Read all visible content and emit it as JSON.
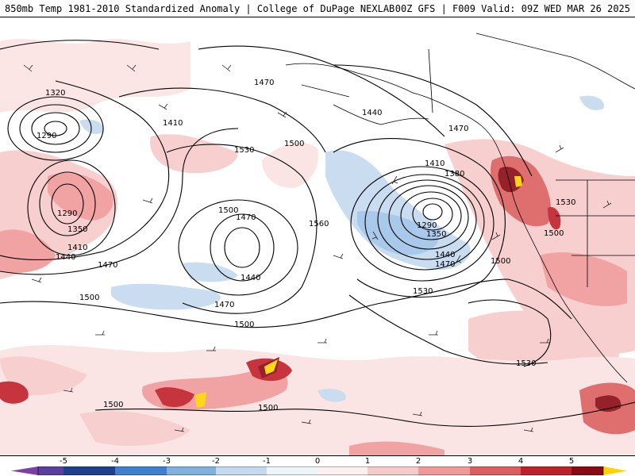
{
  "header": {
    "title_left": "850mb Temp 1981-2010 Standardized Anomaly | College of DuPage NEXLAB",
    "title_right": "00Z GFS | F009 Valid: 09Z WED MAR 26 2025"
  },
  "map": {
    "variable": "850mb temperature standardized anomaly (shaded) and 850mb geopotential height contours (dam) with wind barbs",
    "low_centers": [
      {
        "region": "far northwest",
        "labels": [
          "1320",
          "1290"
        ]
      },
      {
        "region": "west, south of first low",
        "labels": [
          "1290",
          "1350",
          "1410",
          "1440"
        ]
      },
      {
        "region": "central Pacific",
        "labels": [
          "1500",
          "1470",
          "1440"
        ]
      },
      {
        "region": "Gulf of Alaska",
        "labels": [
          "1410",
          "1380",
          "1290",
          "1350",
          "1440",
          "1470"
        ]
      }
    ],
    "contour_labels": [
      {
        "id": "c1320",
        "text": "1320"
      },
      {
        "id": "c1290a",
        "text": "1290"
      },
      {
        "id": "c1410a",
        "text": "1410"
      },
      {
        "id": "c1470a",
        "text": "1470"
      },
      {
        "id": "c1440a",
        "text": "1440"
      },
      {
        "id": "c1470b",
        "text": "1470"
      },
      {
        "id": "c1530a",
        "text": "1530"
      },
      {
        "id": "c1500a",
        "text": "1500"
      },
      {
        "id": "c1410b",
        "text": "1410"
      },
      {
        "id": "c1380",
        "text": "1380"
      },
      {
        "id": "c1290b",
        "text": "1290"
      },
      {
        "id": "c1350a",
        "text": "1350"
      },
      {
        "id": "c1440b",
        "text": "1440"
      },
      {
        "id": "c1470c",
        "text": "1470"
      },
      {
        "id": "c1500b",
        "text": "1500"
      },
      {
        "id": "c1470d",
        "text": "1470"
      },
      {
        "id": "c1560",
        "text": "1560"
      },
      {
        "id": "c1290c",
        "text": "1290"
      },
      {
        "id": "c1350b",
        "text": "1350"
      },
      {
        "id": "c1410c",
        "text": "1410"
      },
      {
        "id": "c1440c",
        "text": "1440"
      },
      {
        "id": "c1470e",
        "text": "1470"
      },
      {
        "id": "c1440d",
        "text": "1440"
      },
      {
        "id": "c1500c",
        "text": "1500"
      },
      {
        "id": "c1470f",
        "text": "1470"
      },
      {
        "id": "c1500d",
        "text": "1500"
      },
      {
        "id": "c1530b",
        "text": "1530"
      },
      {
        "id": "c1500e",
        "text": "1500"
      },
      {
        "id": "c1530c",
        "text": "1530"
      },
      {
        "id": "c1500f",
        "text": "1500"
      },
      {
        "id": "c1530d",
        "text": "1530"
      },
      {
        "id": "c1500g",
        "text": "1500"
      },
      {
        "id": "c1500h",
        "text": "1500"
      }
    ]
  },
  "colorbar": {
    "ticks": [
      "-5",
      "-4",
      "-3",
      "-2",
      "-1",
      "0",
      "1",
      "2",
      "3",
      "4",
      "5"
    ],
    "colors": {
      "m5": "#7b3fa8",
      "m4": "#1f3f8f",
      "m3": "#3f7fcf",
      "m2": "#7fb0e0",
      "m1": "#c4d9ef",
      "zero_lo": "#eef4fa",
      "zero_hi": "#fdf0f0",
      "p1": "#f7caca",
      "p2": "#f09999",
      "p3": "#dc5f5f",
      "p4": "#c0202a",
      "p5": "#8a0a14",
      "p6": "#ffd200"
    }
  }
}
